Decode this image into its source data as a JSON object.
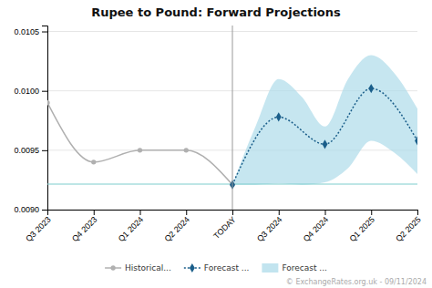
{
  "chart_data": {
    "type": "line",
    "title": "Rupee to Pound: Forward Projections",
    "watermark": "© ExchangeRates.org.uk - 09/11/2024",
    "xlim": [
      0,
      8
    ],
    "xticks": [
      {
        "value": 0,
        "label": "Q3 2023"
      },
      {
        "value": 1,
        "label": "Q4 2023"
      },
      {
        "value": 2,
        "label": "Q1 2024"
      },
      {
        "value": 3,
        "label": "Q2 2024"
      },
      {
        "value": 4,
        "label": "TODAY"
      },
      {
        "value": 5,
        "label": "Q3 2024"
      },
      {
        "value": 6,
        "label": "Q4 2024"
      },
      {
        "value": 7,
        "label": "Q1 2025"
      },
      {
        "value": 8,
        "label": "Q2 2025"
      }
    ],
    "ylim": [
      0.009,
      0.01055
    ],
    "yticks": [
      {
        "value": 0.009,
        "label": "0.0090"
      },
      {
        "value": 0.0095,
        "label": "0.0095"
      },
      {
        "value": 0.01,
        "label": "0.0100"
      },
      {
        "value": 0.0105,
        "label": "0.0105"
      }
    ],
    "grid": true,
    "legend": "bottom",
    "series": [
      {
        "name": "Historical...",
        "type": "line",
        "color": "#b0b0b0",
        "marker": "circle",
        "line_style": "solid",
        "x": [
          0,
          1,
          2,
          3,
          4
        ],
        "values": [
          0.0099,
          0.0094,
          0.0095,
          0.0095,
          0.00921
        ]
      },
      {
        "name": "Forecast ...",
        "type": "line",
        "color": "#1a5e8a",
        "marker": "diamond",
        "line_style": "dotted",
        "x": [
          4,
          5,
          6,
          7,
          8
        ],
        "values": [
          0.00921,
          0.00978,
          0.00955,
          0.01002,
          0.00958
        ]
      },
      {
        "name": "Forecast ...",
        "type": "area",
        "color": "#a8d8e8",
        "x": [
          4,
          4.5,
          5,
          5.5,
          6,
          6.5,
          7,
          7.5,
          8
        ],
        "upper": [
          0.00921,
          0.0097,
          0.0101,
          0.00995,
          0.0097,
          0.0101,
          0.0103,
          0.01015,
          0.00985
        ],
        "lower": [
          0.00921,
          0.00921,
          0.00922,
          0.00921,
          0.00923,
          0.00935,
          0.00958,
          0.00948,
          0.0093
        ]
      }
    ],
    "hline": {
      "value": 0.009215,
      "color": "#7ecece"
    },
    "vline": {
      "value": 4,
      "color": "#999999"
    }
  }
}
